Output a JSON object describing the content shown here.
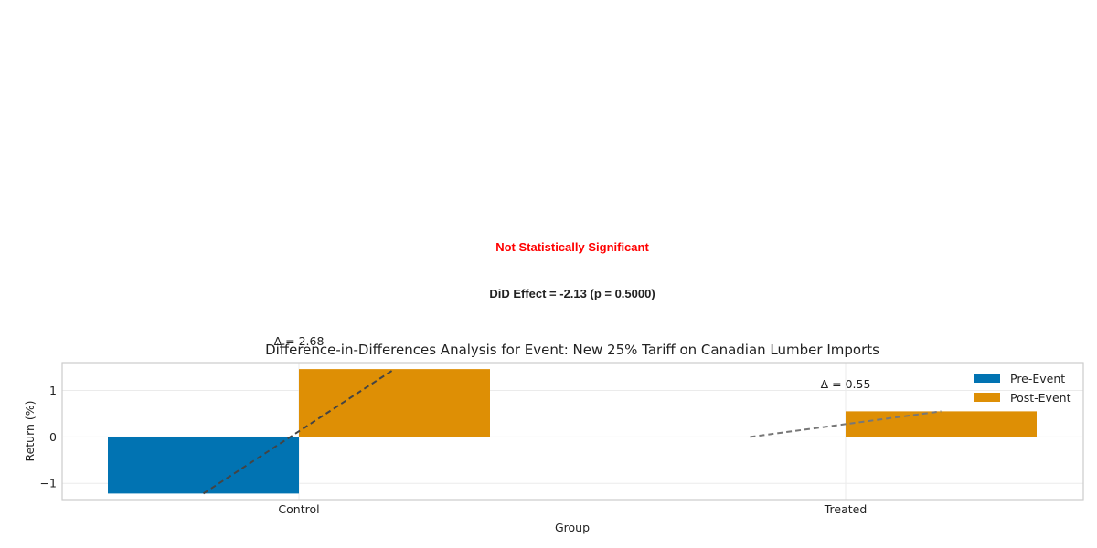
{
  "annotations": {
    "significance": "Not Statistically Significant",
    "significance_color": "#ff0000",
    "did_effect": "DiD Effect = -2.13 (p = 0.5000)"
  },
  "chart_data": {
    "type": "bar",
    "title": "Difference-in-Differences Analysis for Event: New 25% Tariff on Canadian Lumber Imports",
    "xlabel": "Group",
    "ylabel": "Return (%)",
    "categories": [
      "Control",
      "Treated"
    ],
    "series": [
      {
        "name": "Pre-Event",
        "values": [
          -1.22,
          0.0
        ],
        "color": "#0173b2"
      },
      {
        "name": "Post-Event",
        "values": [
          1.46,
          0.55
        ],
        "color": "#de8f05"
      }
    ],
    "ylim": [
      -1.35,
      1.6
    ],
    "yticks": [
      -1,
      0,
      1
    ],
    "ytick_labels": [
      "−1",
      "0",
      "1"
    ],
    "delta_labels": [
      "Δ = 2.68",
      "Δ = 0.55"
    ],
    "legend_position": "top-right",
    "grid": true
  }
}
